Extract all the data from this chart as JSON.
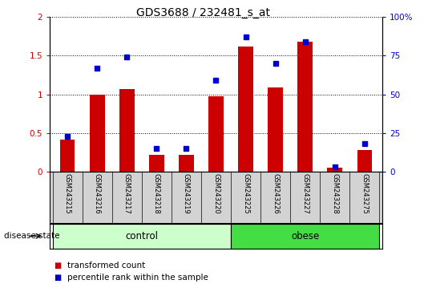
{
  "title": "GDS3688 / 232481_s_at",
  "samples": [
    "GSM243215",
    "GSM243216",
    "GSM243217",
    "GSM243218",
    "GSM243219",
    "GSM243220",
    "GSM243225",
    "GSM243226",
    "GSM243227",
    "GSM243228",
    "GSM243275"
  ],
  "red_values": [
    0.42,
    1.0,
    1.07,
    0.22,
    0.22,
    0.98,
    1.62,
    1.09,
    1.68,
    0.05,
    0.28
  ],
  "blue_values": [
    23,
    67,
    74,
    15,
    15,
    59,
    87,
    70,
    84,
    3,
    18
  ],
  "groups": [
    {
      "label": "control",
      "start": 0,
      "end": 5,
      "color": "#ccffcc"
    },
    {
      "label": "obese",
      "start": 6,
      "end": 10,
      "color": "#44dd44"
    }
  ],
  "disease_state_label": "disease state",
  "red_color": "#cc0000",
  "blue_color": "#0000cc",
  "ylim_left": [
    0,
    2
  ],
  "ylim_right": [
    0,
    100
  ],
  "yticks_left": [
    0,
    0.5,
    1.0,
    1.5,
    2.0
  ],
  "ytick_labels_left": [
    "0",
    "0.5",
    "1",
    "1.5",
    "2"
  ],
  "yticks_right": [
    0,
    25,
    50,
    75,
    100
  ],
  "ytick_labels_right": [
    "0",
    "25",
    "50",
    "75",
    "100%"
  ],
  "legend_red": "transformed count",
  "legend_blue": "percentile rank within the sample",
  "bar_width": 0.5,
  "background_color": "#ffffff",
  "tick_label_area_color": "#d3d3d3"
}
